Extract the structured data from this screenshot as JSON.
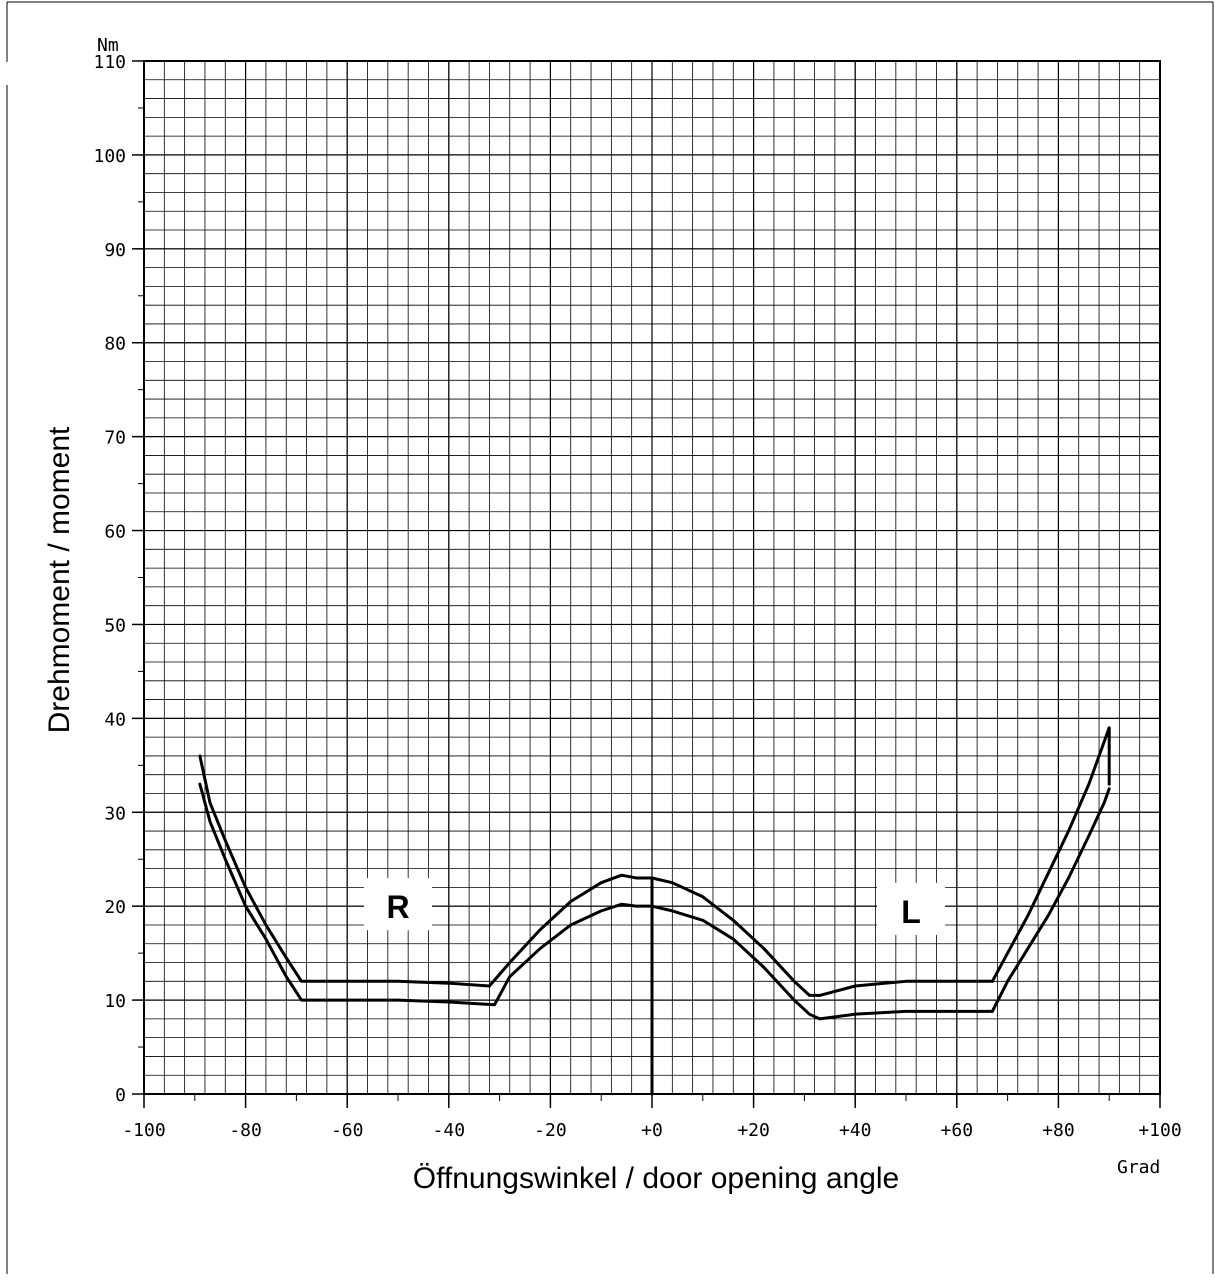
{
  "chart_data": {
    "type": "line",
    "title": "",
    "ylabel": "Drehmoment / moment",
    "xlabel": "Öffnungswinkel / door opening angle",
    "y_unit": "Nm",
    "x_unit": "Grad",
    "xlim": [
      -100,
      100
    ],
    "ylim": [
      0,
      110
    ],
    "x_ticks": [
      -100,
      -80,
      -60,
      -40,
      -20,
      0,
      20,
      40,
      60,
      80,
      100
    ],
    "x_tick_labels": [
      "-100",
      "-80",
      "-60",
      "-40",
      "-20",
      "+0",
      "+20",
      "+40",
      "+60",
      "+80",
      "+100"
    ],
    "y_ticks": [
      0,
      10,
      20,
      30,
      40,
      50,
      60,
      70,
      80,
      90,
      100,
      110
    ],
    "y_tick_labels": [
      "0",
      "10",
      "20",
      "30",
      "40",
      "50",
      "60",
      "70",
      "80",
      "90",
      "100",
      "110"
    ],
    "grid": true,
    "annotations": [
      {
        "text": "R",
        "x": -50,
        "y": 20
      },
      {
        "text": "L",
        "x": 51,
        "y": 19.5
      }
    ],
    "series": [
      {
        "x": [
          -89,
          -87,
          -84,
          -80,
          -76,
          -72,
          -69,
          -60,
          -50,
          -40,
          -31,
          -28,
          -22,
          -16,
          -10,
          -6,
          -3,
          0,
          4,
          10,
          16,
          22,
          28,
          31,
          33,
          40,
          50,
          60,
          67
        ],
        "y": [
          33,
          29,
          25,
          20,
          16.5,
          12.5,
          10,
          10,
          10,
          9.8,
          9.5,
          12.5,
          15.5,
          18,
          19.5,
          20.2,
          20,
          20,
          19.5,
          18.5,
          16.5,
          13.5,
          10,
          8.5,
          8,
          8.5,
          8.8,
          8.8,
          8.8
        ]
      },
      {
        "x": [
          -89,
          -87,
          -84,
          -80,
          -76,
          -72,
          -69,
          -60,
          -50,
          -40,
          -32,
          -28,
          -22,
          -16,
          -10,
          -6,
          -3,
          0,
          4,
          10,
          16,
          22,
          28,
          31,
          33,
          40,
          50,
          60,
          67
        ],
        "y": [
          36,
          31,
          27,
          22,
          18,
          14.5,
          12,
          12,
          12,
          11.8,
          11.5,
          14,
          17.5,
          20.5,
          22.5,
          23.3,
          23,
          23,
          22.5,
          21,
          18.5,
          15.5,
          12,
          10.5,
          10.5,
          11.5,
          12,
          12,
          12
        ]
      },
      {
        "x": [
          67,
          70,
          74,
          78,
          82,
          86,
          89,
          90
        ],
        "y": [
          8.8,
          12,
          15.5,
          19,
          23,
          27.5,
          31,
          32.5
        ]
      },
      {
        "x": [
          67,
          70,
          74,
          78,
          82,
          86,
          89,
          90,
          90
        ],
        "y": [
          12,
          15,
          19,
          23.5,
          28,
          33,
          37.5,
          39,
          33
        ]
      },
      {
        "x": [
          0,
          0,
          0,
          0
        ],
        "y": [
          23,
          10,
          0,
          8
        ]
      }
    ]
  }
}
